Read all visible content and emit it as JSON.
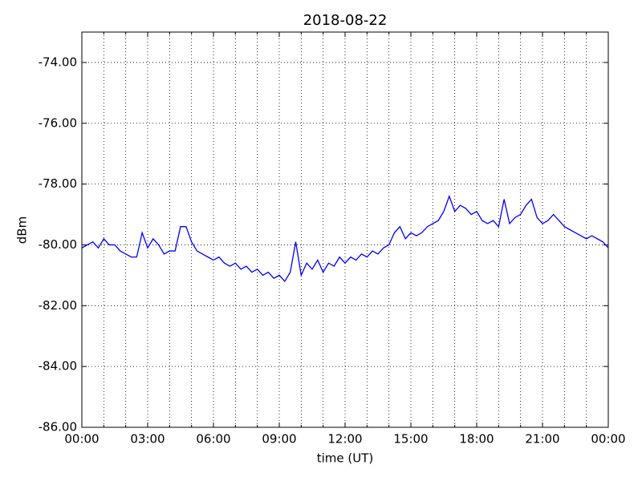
{
  "chart_data": {
    "type": "line",
    "title": "2018-08-22",
    "x_label": "time (UT)",
    "y_label": "dBm",
    "x": [
      0,
      0.25,
      0.5,
      0.75,
      1,
      1.25,
      1.5,
      1.75,
      2,
      2.25,
      2.5,
      2.75,
      3,
      3.25,
      3.5,
      3.75,
      4,
      4.25,
      4.5,
      4.75,
      5,
      5.25,
      5.5,
      5.75,
      6,
      6.25,
      6.5,
      6.75,
      7,
      7.25,
      7.5,
      7.75,
      8,
      8.25,
      8.5,
      8.75,
      9,
      9.25,
      9.5,
      9.75,
      10,
      10.25,
      10.5,
      10.75,
      11,
      11.25,
      11.5,
      11.75,
      12,
      12.25,
      12.5,
      12.75,
      13,
      13.25,
      13.5,
      13.75,
      14,
      14.25,
      14.5,
      14.75,
      15,
      15.25,
      15.5,
      15.75,
      16,
      16.25,
      16.5,
      16.75,
      17,
      17.25,
      17.5,
      17.75,
      18,
      18.25,
      18.5,
      18.75,
      19,
      19.25,
      19.5,
      19.75,
      20,
      20.25,
      20.5,
      20.75,
      21,
      21.25,
      21.5,
      21.75,
      22,
      22.25,
      22.5,
      22.75,
      23,
      23.25,
      23.5,
      23.75,
      24
    ],
    "series": [
      {
        "color": "#0000ff",
        "values": [
          -80.1,
          -80.0,
          -79.9,
          -80.1,
          -79.8,
          -80.0,
          -80.0,
          -80.2,
          -80.3,
          -80.4,
          -80.4,
          -79.6,
          -80.1,
          -79.8,
          -80.0,
          -80.3,
          -80.2,
          -80.2,
          -79.4,
          -79.4,
          -79.9,
          -80.2,
          -80.3,
          -80.4,
          -80.5,
          -80.4,
          -80.6,
          -80.7,
          -80.6,
          -80.8,
          -80.7,
          -80.9,
          -80.8,
          -81.0,
          -80.9,
          -81.1,
          -81.0,
          -81.2,
          -80.9,
          -79.9,
          -81.0,
          -80.6,
          -80.8,
          -80.5,
          -80.9,
          -80.6,
          -80.7,
          -80.4,
          -80.6,
          -80.4,
          -80.5,
          -80.3,
          -80.4,
          -80.2,
          -80.3,
          -80.1,
          -80.0,
          -79.6,
          -79.4,
          -79.8,
          -79.6,
          -79.7,
          -79.6,
          -79.4,
          -79.3,
          -79.2,
          -78.9,
          -78.4,
          -78.9,
          -78.7,
          -78.8,
          -79.0,
          -78.9,
          -79.2,
          -79.3,
          -79.2,
          -79.4,
          -78.5,
          -79.3,
          -79.1,
          -79.0,
          -78.7,
          -78.5,
          -79.1,
          -79.3,
          -79.2,
          -79.0,
          -79.2,
          -79.4,
          -79.5,
          -79.6,
          -79.7,
          -79.8,
          -79.7,
          -79.8,
          -79.9,
          -80.1
        ]
      }
    ],
    "xlim": [
      0,
      24
    ],
    "xticks": [
      {
        "value": 0,
        "label": "00:00"
      },
      {
        "value": 3,
        "label": "03:00"
      },
      {
        "value": 6,
        "label": "06:00"
      },
      {
        "value": 9,
        "label": "09:00"
      },
      {
        "value": 12,
        "label": "12:00"
      },
      {
        "value": 15,
        "label": "15:00"
      },
      {
        "value": 18,
        "label": "18:00"
      },
      {
        "value": 21,
        "label": "21:00"
      },
      {
        "value": 24,
        "label": "00:00"
      }
    ],
    "xminorticks": [
      1,
      2,
      4,
      5,
      7,
      8,
      10,
      11,
      13,
      14,
      16,
      17,
      19,
      20,
      22,
      23
    ],
    "ylim": [
      -86,
      -73
    ],
    "yticks": [
      {
        "value": -86,
        "label": "-86.00"
      },
      {
        "value": -84,
        "label": "-84.00"
      },
      {
        "value": -82,
        "label": "-82.00"
      },
      {
        "value": -80,
        "label": "-80.00"
      },
      {
        "value": -78,
        "label": "-78.00"
      },
      {
        "value": -76,
        "label": "-76.00"
      },
      {
        "value": -74,
        "label": "-74.00"
      }
    ],
    "grid": true
  }
}
